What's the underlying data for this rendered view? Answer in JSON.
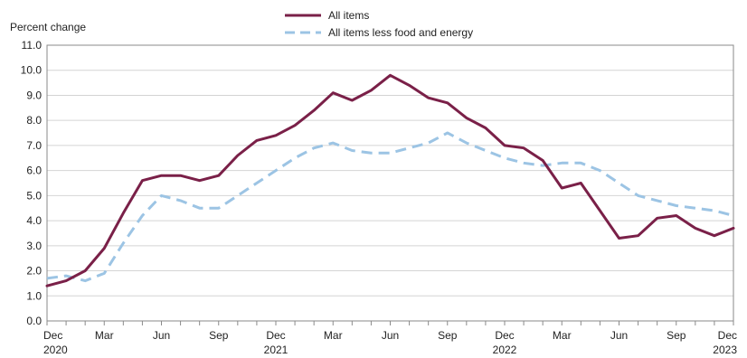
{
  "chart_data": {
    "type": "line",
    "ylabel": "Percent change",
    "ylim": [
      0,
      11
    ],
    "yticks": [
      "0.0",
      "1.0",
      "2.0",
      "3.0",
      "4.0",
      "5.0",
      "6.0",
      "7.0",
      "8.0",
      "9.0",
      "10.0",
      "11.0"
    ],
    "grid": "horizontal",
    "legend_position": "top-center",
    "x": [
      "2020-12",
      "2021-01",
      "2021-02",
      "2021-03",
      "2021-04",
      "2021-05",
      "2021-06",
      "2021-07",
      "2021-08",
      "2021-09",
      "2021-10",
      "2021-11",
      "2021-12",
      "2022-01",
      "2022-02",
      "2022-03",
      "2022-04",
      "2022-05",
      "2022-06",
      "2022-07",
      "2022-08",
      "2022-09",
      "2022-10",
      "2022-11",
      "2022-12",
      "2023-01",
      "2023-02",
      "2023-03",
      "2023-04",
      "2023-05",
      "2023-06",
      "2023-07",
      "2023-08",
      "2023-09",
      "2023-10",
      "2023-11",
      "2023-12"
    ],
    "xtick_labels": [
      {
        "x": "2020-12",
        "month": "Dec",
        "year": "2020"
      },
      {
        "x": "2021-03",
        "month": "Mar",
        "year": ""
      },
      {
        "x": "2021-06",
        "month": "Jun",
        "year": ""
      },
      {
        "x": "2021-09",
        "month": "Sep",
        "year": ""
      },
      {
        "x": "2021-12",
        "month": "Dec",
        "year": "2021"
      },
      {
        "x": "2022-03",
        "month": "Mar",
        "year": ""
      },
      {
        "x": "2022-06",
        "month": "Jun",
        "year": ""
      },
      {
        "x": "2022-09",
        "month": "Sep",
        "year": ""
      },
      {
        "x": "2022-12",
        "month": "Dec",
        "year": "2022"
      },
      {
        "x": "2023-03",
        "month": "Mar",
        "year": ""
      },
      {
        "x": "2023-06",
        "month": "Jun",
        "year": ""
      },
      {
        "x": "2023-09",
        "month": "Sep",
        "year": ""
      },
      {
        "x": "2023-12",
        "month": "Dec",
        "year": "2023"
      }
    ],
    "series": [
      {
        "name": "All items",
        "color": "#7a2048",
        "dash": "solid",
        "values": [
          1.4,
          1.6,
          2.0,
          2.9,
          4.3,
          5.6,
          5.8,
          5.8,
          5.6,
          5.8,
          6.6,
          7.2,
          7.4,
          7.8,
          8.4,
          9.1,
          8.8,
          9.2,
          9.8,
          9.4,
          8.9,
          8.7,
          8.1,
          7.7,
          7.0,
          6.9,
          6.4,
          5.3,
          5.5,
          4.4,
          3.3,
          3.4,
          4.1,
          4.2,
          3.7,
          3.4,
          3.7
        ]
      },
      {
        "name": "All items less food and energy",
        "color": "#9cc4e4",
        "dash": "dashed",
        "values": [
          1.7,
          1.8,
          1.6,
          1.9,
          3.1,
          4.2,
          5.0,
          4.8,
          4.5,
          4.5,
          5.0,
          5.5,
          6.0,
          6.5,
          6.9,
          7.1,
          6.8,
          6.7,
          6.7,
          6.9,
          7.1,
          7.5,
          7.1,
          6.8,
          6.5,
          6.3,
          6.2,
          6.3,
          6.3,
          6.0,
          5.5,
          5.0,
          4.8,
          4.6,
          4.5,
          4.4,
          4.2
        ]
      }
    ]
  }
}
